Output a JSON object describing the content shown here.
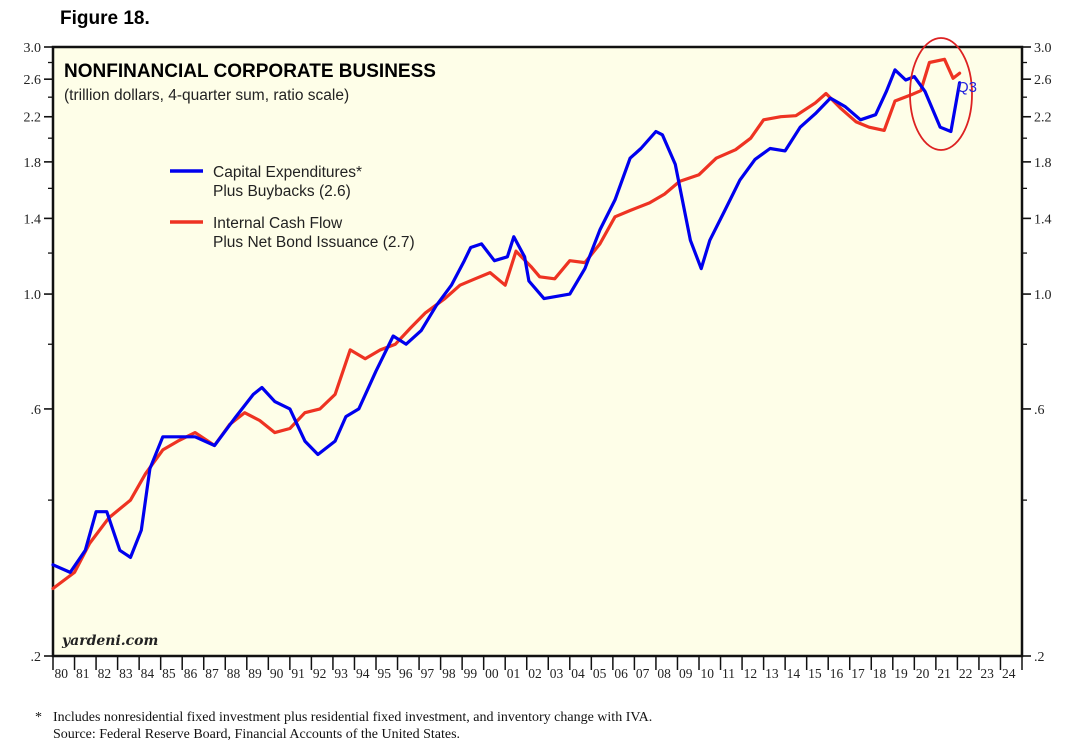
{
  "figure_label": "Figure 18.",
  "footnote": {
    "marker": "*",
    "line1": "Includes nonresidential fixed investment plus residential fixed investment, and inventory change with IVA.",
    "line2": "Source: Federal Reserve Board, Financial Accounts of the United States."
  },
  "chart_data": {
    "type": "line",
    "title": "NONFINANCIAL CORPORATE BUSINESS",
    "subtitle": "(trillion dollars, 4-quarter sum, ratio scale)",
    "watermark": "yardeni.com",
    "xlabel": "",
    "ylabel": "",
    "y_scale": "log",
    "ylim": [
      0.2,
      3.0
    ],
    "xlim": [
      1980,
      2025
    ],
    "y_ticks": [
      0.2,
      0.6,
      1.0,
      1.4,
      1.8,
      2.2,
      2.6,
      3.0
    ],
    "y_tick_labels": [
      ".2",
      ".6",
      "1.0",
      "1.4",
      "1.8",
      "2.2",
      "2.6",
      "3.0"
    ],
    "y_minor_ticks": [
      0.4,
      0.8,
      1.2,
      1.6,
      2.0,
      2.4,
      2.8
    ],
    "x_tick_labels": [
      "80",
      "81",
      "82",
      "83",
      "84",
      "85",
      "86",
      "87",
      "88",
      "89",
      "90",
      "91",
      "92",
      "93",
      "94",
      "95",
      "96",
      "97",
      "98",
      "99",
      "00",
      "01",
      "02",
      "03",
      "04",
      "05",
      "06",
      "07",
      "08",
      "09",
      "10",
      "11",
      "12",
      "13",
      "14",
      "15",
      "16",
      "17",
      "18",
      "19",
      "20",
      "21",
      "22",
      "23",
      "24"
    ],
    "grid": false,
    "background": "#fefee8",
    "legend": {
      "placement": "upper-left"
    },
    "annotation": {
      "text": "Q3",
      "color": "#2222dd",
      "highlight": "circle around 2020-2021 values",
      "highlight_color": "#dd2222"
    },
    "series": [
      {
        "name": "Capital Expenditures* Plus Buybacks (2.6)",
        "legend_line1": "Capital Expenditures*",
        "legend_line2": "Plus Buybacks (2.6)",
        "color": "#0000ee",
        "x": [
          1980.0,
          1980.8,
          1981.5,
          1982.0,
          1982.5,
          1983.1,
          1983.6,
          1984.1,
          1984.5,
          1985.1,
          1985.8,
          1986.6,
          1987.5,
          1988.5,
          1989.3,
          1989.7,
          1990.3,
          1991.0,
          1991.7,
          1992.3,
          1993.1,
          1993.6,
          1994.2,
          1995.0,
          1995.8,
          1996.4,
          1997.1,
          1997.8,
          1998.5,
          1999.1,
          1999.4,
          1999.9,
          2000.5,
          2001.1,
          2001.4,
          2001.9,
          2002.1,
          2002.8,
          2003.4,
          2004.0,
          2004.7,
          2005.4,
          2006.1,
          2006.8,
          2007.3,
          2008.0,
          2008.3,
          2008.9,
          2009.6,
          2010.1,
          2010.5,
          2011.2,
          2011.9,
          2012.6,
          2013.3,
          2014.0,
          2014.7,
          2015.4,
          2016.1,
          2016.8,
          2017.5,
          2018.2,
          2018.7,
          2019.1,
          2019.6,
          2020.0,
          2020.5,
          2021.2,
          2021.7,
          2022.1
        ],
        "values": [
          0.3,
          0.29,
          0.32,
          0.38,
          0.38,
          0.32,
          0.31,
          0.35,
          0.46,
          0.53,
          0.53,
          0.53,
          0.51,
          0.58,
          0.64,
          0.66,
          0.62,
          0.6,
          0.52,
          0.49,
          0.52,
          0.58,
          0.6,
          0.71,
          0.83,
          0.8,
          0.85,
          0.95,
          1.04,
          1.16,
          1.23,
          1.25,
          1.16,
          1.18,
          1.29,
          1.18,
          1.06,
          0.98,
          0.99,
          1.0,
          1.12,
          1.33,
          1.52,
          1.83,
          1.91,
          2.06,
          2.03,
          1.78,
          1.27,
          1.12,
          1.27,
          1.45,
          1.66,
          1.82,
          1.91,
          1.89,
          2.1,
          2.23,
          2.39,
          2.3,
          2.17,
          2.22,
          2.46,
          2.71,
          2.59,
          2.63,
          2.46,
          2.1,
          2.06,
          2.56
        ]
      },
      {
        "name": "Internal Cash Flow Plus Net Bond Issuance (2.7)",
        "legend_line1": "Internal Cash Flow",
        "legend_line2": "Plus Net Bond Issuance (2.7)",
        "color": "#ee3322",
        "x": [
          1980.0,
          1981.0,
          1981.7,
          1982.6,
          1983.6,
          1984.3,
          1985.1,
          1985.8,
          1986.6,
          1987.5,
          1988.2,
          1988.9,
          1989.6,
          1990.3,
          1991.0,
          1991.7,
          1992.4,
          1993.1,
          1993.8,
          1994.5,
          1995.2,
          1995.9,
          1996.6,
          1997.3,
          1998.2,
          1998.9,
          1999.6,
          2000.3,
          2001.0,
          2001.5,
          2002.2,
          2002.6,
          2003.3,
          2004.0,
          2004.7,
          2005.4,
          2006.1,
          2006.8,
          2007.7,
          2008.4,
          2009.1,
          2010.0,
          2010.8,
          2011.7,
          2012.4,
          2013.0,
          2013.8,
          2014.5,
          2015.4,
          2015.9,
          2016.6,
          2017.3,
          2017.9,
          2018.6,
          2019.1,
          2019.8,
          2020.3,
          2020.7,
          2021.4,
          2021.8,
          2022.1
        ],
        "values": [
          0.27,
          0.29,
          0.33,
          0.37,
          0.4,
          0.45,
          0.5,
          0.52,
          0.54,
          0.51,
          0.56,
          0.59,
          0.57,
          0.54,
          0.55,
          0.59,
          0.6,
          0.64,
          0.78,
          0.75,
          0.78,
          0.8,
          0.86,
          0.92,
          0.98,
          1.04,
          1.07,
          1.1,
          1.04,
          1.21,
          1.13,
          1.08,
          1.07,
          1.16,
          1.15,
          1.25,
          1.41,
          1.45,
          1.5,
          1.56,
          1.65,
          1.7,
          1.83,
          1.9,
          2.0,
          2.17,
          2.2,
          2.21,
          2.34,
          2.44,
          2.28,
          2.15,
          2.1,
          2.07,
          2.36,
          2.42,
          2.47,
          2.8,
          2.84,
          2.61,
          2.67
        ]
      }
    ]
  }
}
